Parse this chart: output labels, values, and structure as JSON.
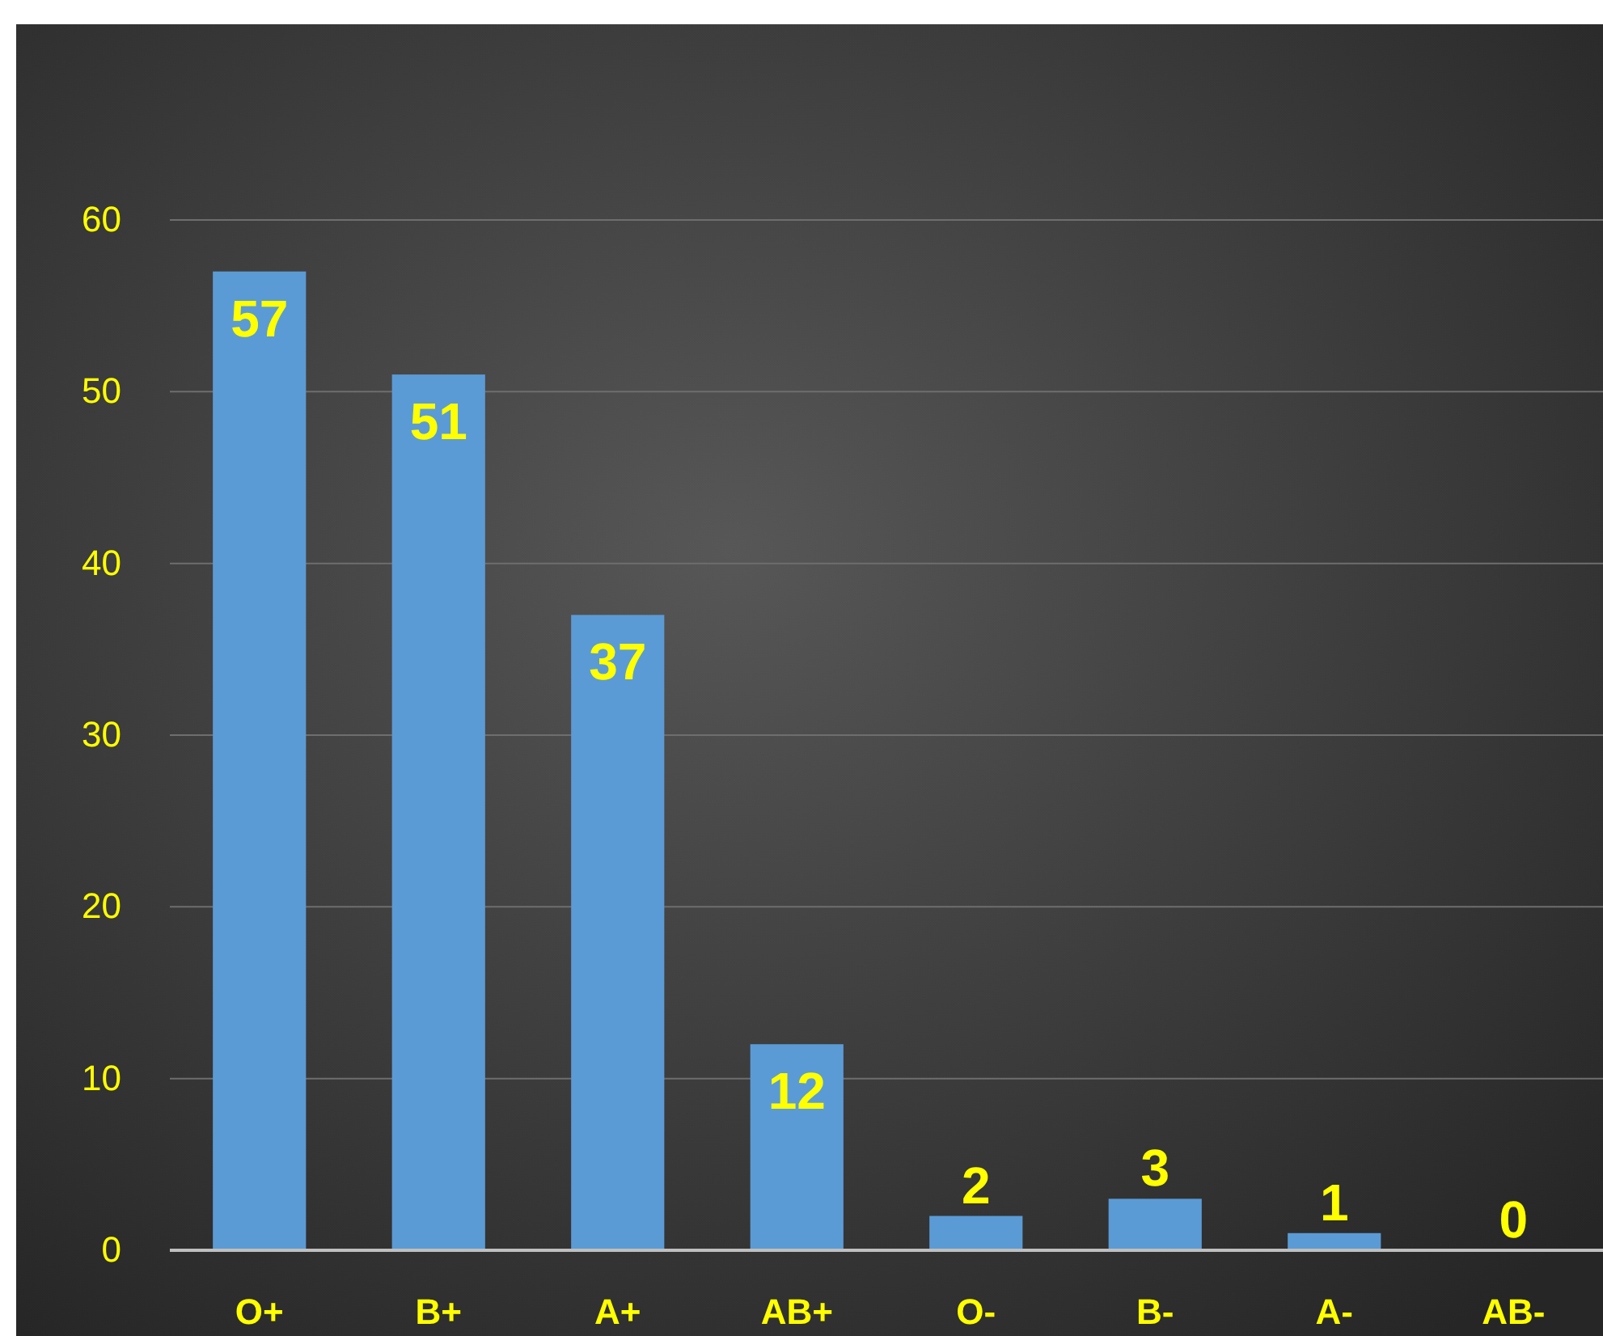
{
  "chart_data": {
    "type": "bar",
    "categories": [
      "O+",
      "B+",
      "A+",
      "AB+",
      "O-",
      "B-",
      "A-",
      "AB-"
    ],
    "values": [
      57,
      51,
      37,
      12,
      2,
      3,
      1,
      0
    ],
    "color": "#5b9bd5",
    "ylim": [
      0,
      60
    ],
    "yticks": [
      0,
      10,
      20,
      30,
      40,
      50,
      60
    ],
    "grid": "y",
    "data_labels": true
  }
}
